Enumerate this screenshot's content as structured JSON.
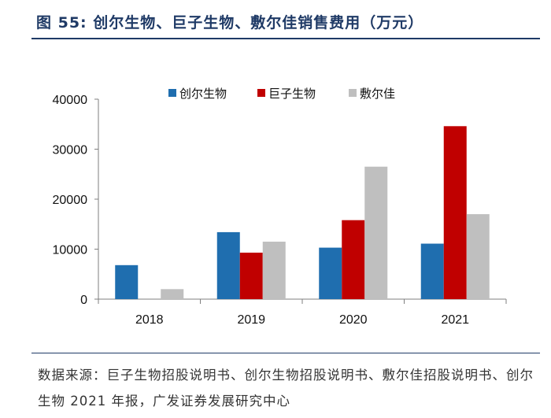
{
  "title": "图 55: 创尔生物、巨子生物、敷尔佳销售费用（万元）",
  "source_note": "数据来源：巨子生物招股说明书、创尔生物招股说明书、敷尔佳招股说明书、创尔生物 2021 年报，广发证券发展研究中心",
  "chart_data": {
    "type": "bar",
    "categories": [
      "2018",
      "2019",
      "2020",
      "2021"
    ],
    "series": [
      {
        "name": "创尔生物",
        "color": "#1f6eaf",
        "values": [
          6800,
          13400,
          10300,
          11100
        ]
      },
      {
        "name": "巨子生物",
        "color": "#c00000",
        "values": [
          null,
          9300,
          15800,
          34600
        ]
      },
      {
        "name": "敷尔佳",
        "color": "#bfbfbf",
        "values": [
          2000,
          11500,
          26500,
          17000
        ]
      }
    ],
    "ylim": [
      0,
      40000
    ],
    "yticks": [
      "0",
      "10000",
      "20000",
      "30000",
      "40000"
    ],
    "legend_position": "top",
    "grid": false
  }
}
